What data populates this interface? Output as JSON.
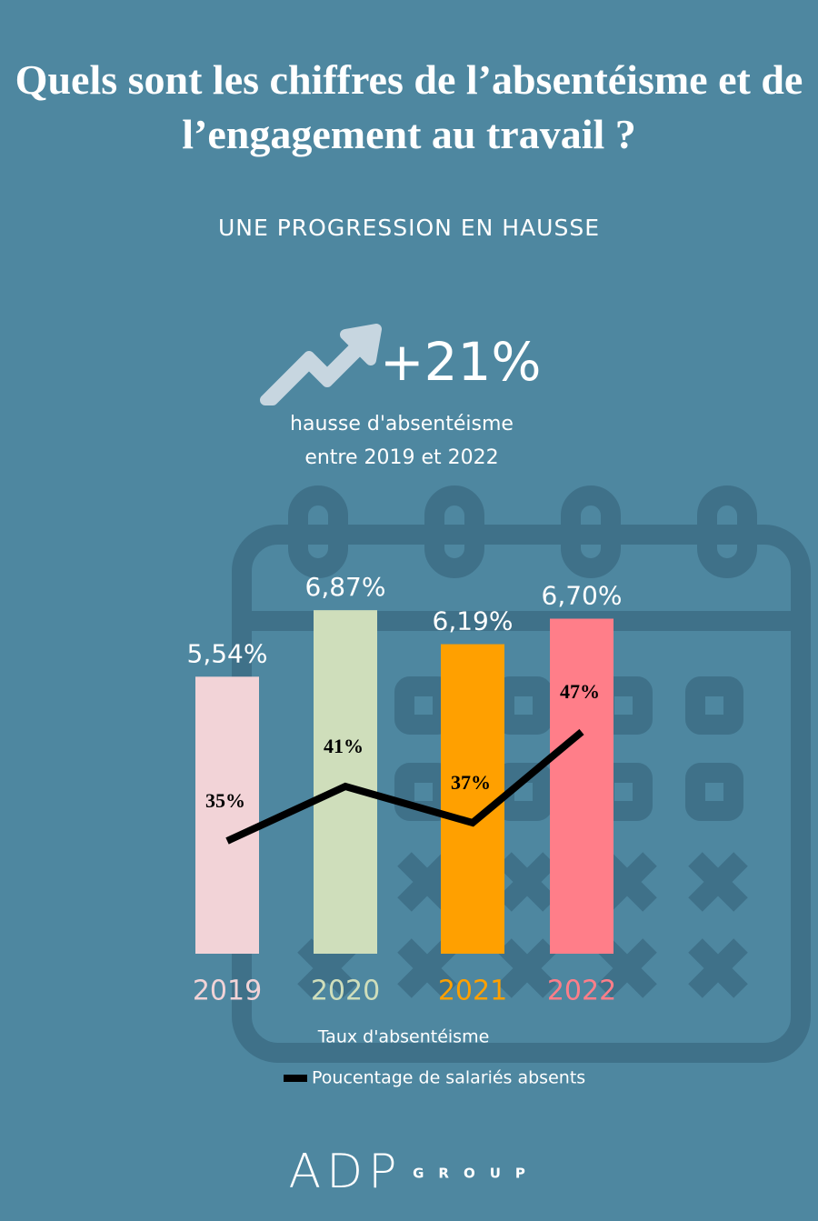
{
  "title": "Quels sont les chiffres de l’absentéisme et de l’engagement au travail ?",
  "subtitle": "UNE PROGRESSION EN HAUSSE",
  "highlight": {
    "value": "+21%",
    "text": [
      "hausse d'absentéisme",
      "entre 2019 et 2022"
    ]
  },
  "chart_data": {
    "type": "bar",
    "categories": [
      "2019",
      "2020",
      "2021",
      "2022"
    ],
    "series": [
      {
        "name": "Taux d'absentéisme",
        "type": "bar",
        "colors": [
          "#f2d3d7",
          "#cfdebb",
          "#ffa000",
          "#ff7e89"
        ],
        "values": [
          5.54,
          6.87,
          6.19,
          6.7
        ],
        "value_labels": [
          "5,54%",
          "6,87%",
          "6,19%",
          "6,70%"
        ]
      },
      {
        "name": "Poucentage de salariés absents",
        "type": "line",
        "color": "#000000",
        "values": [
          35,
          41,
          37,
          47
        ],
        "value_labels": [
          "35%",
          "41%",
          "37%",
          "47%"
        ]
      }
    ]
  },
  "logo": {
    "name": "ADP",
    "tag": "GROUP"
  }
}
